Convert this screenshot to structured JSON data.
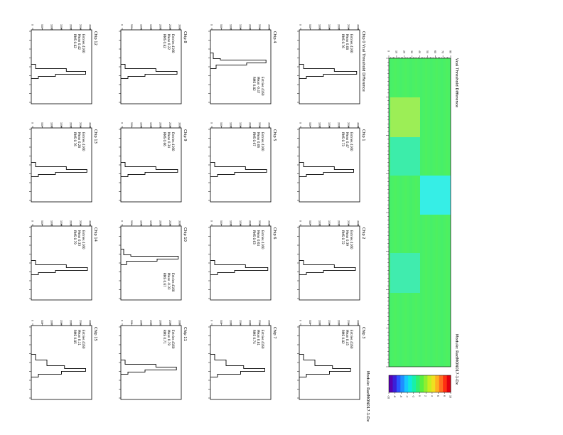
{
  "module_label": "Module: RadMON017-1-Dx",
  "heatmap": {
    "title": "Vcal Threshold Difference",
    "module_label": "Module: RadMON017-1-Dx",
    "palette": [
      "#5a00b0",
      "#3b1fd8",
      "#2a55ff",
      "#1f8fff",
      "#17c7ff",
      "#10e8e0",
      "#18f0a8",
      "#30f070",
      "#58f040",
      "#90ee30",
      "#c8ee20",
      "#f0e020",
      "#ffb020",
      "#ff7020",
      "#ff3010",
      "#e00010"
    ],
    "scale_ticks": [
      "-10",
      "-8",
      "-6",
      "-4",
      "-2",
      "0",
      "2",
      "4",
      "6",
      "8",
      "10"
    ],
    "axis_ticks": [
      "0",
      "10",
      "20",
      "30",
      "40",
      "50",
      "60",
      "70",
      "80"
    ],
    "base_color": "#4af065",
    "patches": [
      {
        "color": "#9cee56"
      },
      {
        "color": "#3cedaa"
      },
      {
        "color": "#36eee6"
      },
      {
        "color": "#40ecae"
      }
    ]
  },
  "histogram_axis_ticks": [
    "-80",
    "-60",
    "-40",
    "-20",
    "0",
    "20",
    "40",
    "60",
    "80"
  ],
  "count_axis_ticks": [
    "0",
    "500",
    "1000",
    "1500",
    "2000",
    "2500",
    "3000"
  ],
  "chips": [
    {
      "title": "Chip 0  Vcal Threshold Difference",
      "stats": [
        "Entries 4160",
        "Mean 0.08",
        "RMS 0.76"
      ],
      "peak": 0.95,
      "shape": "narrow"
    },
    {
      "title": "Chip 1",
      "stats": [
        "Entries 4160",
        "Mean 0.47",
        "RMS 0.73"
      ],
      "peak": 0.9,
      "shape": "narrow"
    },
    {
      "title": "Chip 2",
      "stats": [
        "Entries 4160",
        "Mean 0.39",
        "RMS 0.72"
      ],
      "peak": 0.93,
      "shape": "narrow"
    },
    {
      "title": "Chip 3",
      "stats": [
        "Entries 4160",
        "Mean 0.45",
        "RMS 0.82"
      ],
      "peak": 0.85,
      "shape": "wide"
    },
    {
      "title": "Chip 4",
      "stats": [
        "Entries 4160",
        "Mean -0.47",
        "RMS 0.82"
      ],
      "peak": 0.92,
      "shape": "narrow-low"
    },
    {
      "title": "Chip 5",
      "stats": [
        "Entries 4160",
        "Mean 0.06",
        "RMS 0.67"
      ],
      "peak": 0.93,
      "shape": "narrow"
    },
    {
      "title": "Chip 6",
      "stats": [
        "Entries 4160",
        "Mean 0.64",
        "RMS 0.63"
      ],
      "peak": 0.95,
      "shape": "narrow"
    },
    {
      "title": "Chip 7",
      "stats": [
        "Entries 4160",
        "Mean 0.81",
        "RMS 0.74"
      ],
      "peak": 0.9,
      "shape": "wide"
    },
    {
      "title": "Chip 8",
      "stats": [
        "Entries 4160",
        "Mean 0.22",
        "RMS 0.82"
      ],
      "peak": 0.93,
      "shape": "narrow"
    },
    {
      "title": "Chip 9",
      "stats": [
        "Entries 4160",
        "Mean 0.34",
        "RMS 0.66"
      ],
      "peak": 0.94,
      "shape": "narrow"
    },
    {
      "title": "Chip 10",
      "stats": [
        "Entries 4160",
        "Mean -0.33",
        "RMS 0.67"
      ],
      "peak": 0.95,
      "shape": "narrow-low"
    },
    {
      "title": "Chip 11",
      "stats": [
        "Entries 4160",
        "Mean 0.79",
        "RMS 0.71"
      ],
      "peak": 0.92,
      "shape": "narrow"
    },
    {
      "title": "Chip 12",
      "stats": [
        "Entries 4160",
        "Mean 0.42",
        "RMS 0.82"
      ],
      "peak": 0.9,
      "shape": "narrow"
    },
    {
      "title": "Chip 13",
      "stats": [
        "Entries 4160",
        "Mean 0.28",
        "RMS 0.76"
      ],
      "peak": 0.92,
      "shape": "narrow"
    },
    {
      "title": "Chip 14",
      "stats": [
        "Entries 4160",
        "Mean 0.33",
        "RMS 0.79"
      ],
      "peak": 0.93,
      "shape": "narrow"
    },
    {
      "title": "Chip 15",
      "stats": [
        "Entries 4160",
        "Mean 0.11",
        "RMS 0.85"
      ],
      "peak": 0.9,
      "shape": "wide"
    }
  ],
  "chart_data": [
    {
      "type": "heatmap",
      "title": "Vcal Threshold Difference",
      "z_range": [
        -10,
        10
      ]
    },
    {
      "type": "bar",
      "title": "Chip 0  Vcal Threshold Difference",
      "x_range": [
        -80,
        80
      ]
    }
  ]
}
